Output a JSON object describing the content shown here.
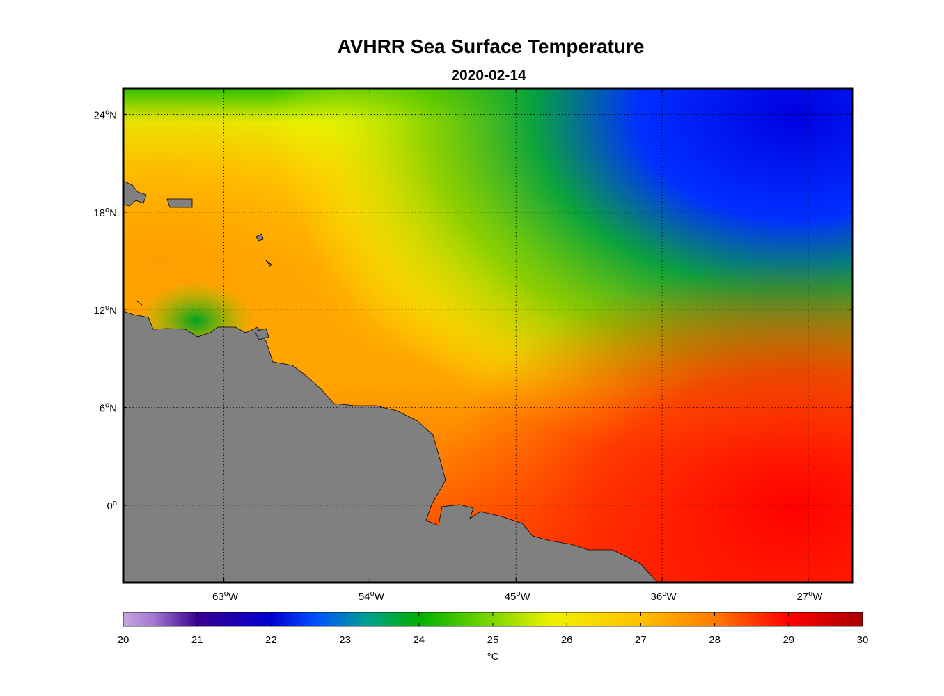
{
  "title": "AVHRR Sea Surface Temperature",
  "subtitle": "2020-02-14",
  "map": {
    "lat_ticks": [
      {
        "value": 24,
        "deg": "24",
        "hem": "N"
      },
      {
        "value": 18,
        "deg": "18",
        "hem": "N"
      },
      {
        "value": 12,
        "deg": "12",
        "hem": "N"
      },
      {
        "value": 6,
        "deg": "6",
        "hem": "N"
      },
      {
        "value": 0,
        "deg": "0",
        "hem": ""
      }
    ],
    "lon_ticks": [
      {
        "value": -63,
        "deg": "63",
        "hem": "W"
      },
      {
        "value": -54,
        "deg": "54",
        "hem": "W"
      },
      {
        "value": -45,
        "deg": "45",
        "hem": "W"
      },
      {
        "value": -36,
        "deg": "36",
        "hem": "W"
      },
      {
        "value": -27,
        "deg": "27",
        "hem": "W"
      }
    ],
    "lon_range": [
      -70,
      -25
    ],
    "lat_range": [
      -5,
      25
    ],
    "grid": "dotted",
    "land_color": "#808080"
  },
  "colorbar": {
    "ticks": [
      "20",
      "21",
      "22",
      "23",
      "24",
      "25",
      "26",
      "27",
      "28",
      "29",
      "30"
    ],
    "range": [
      20,
      30
    ],
    "unit": "°C",
    "colormap": "jet-like: lavender → purple → blue → green → yellow → orange → red → dark red"
  },
  "chart_data": {
    "type": "heatmap",
    "title": "AVHRR Sea Surface Temperature",
    "subtitle": "2020-02-14",
    "xlabel": "",
    "ylabel": "",
    "value_range": [
      20,
      30
    ],
    "x_ticks": [
      "63°W",
      "54°W",
      "45°W",
      "36°W",
      "27°W"
    ],
    "y_ticks": [
      "24°N",
      "18°N",
      "12°N",
      "6°N",
      "0°"
    ],
    "approx_sst_by_region": [
      {
        "region": "northeast",
        "value": 22
      },
      {
        "region": "north-central",
        "value": 24.5
      },
      {
        "region": "northwest",
        "value": 26
      },
      {
        "region": "west",
        "value": 27.3
      },
      {
        "region": "central",
        "value": 26.5
      },
      {
        "region": "south-central",
        "value": 27.5
      },
      {
        "region": "southeast",
        "value": 28.8
      }
    ]
  }
}
